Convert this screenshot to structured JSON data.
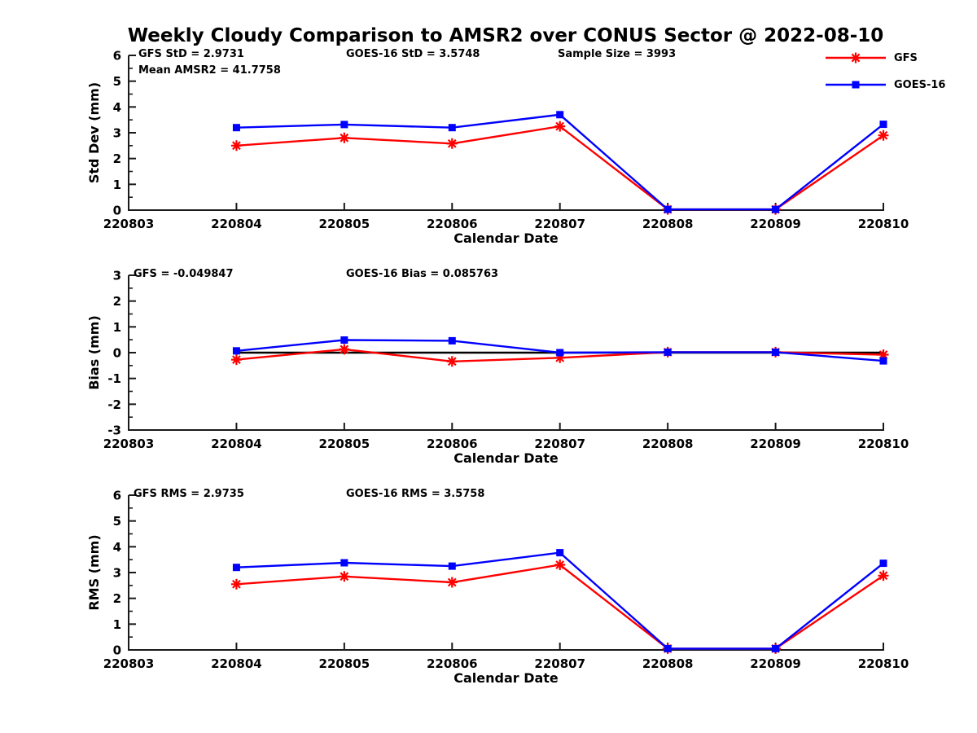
{
  "title": "Weekly Cloudy Comparison to AMSR2 over CONUS Sector @ 2022-08-10",
  "colors": {
    "gfs": "#ff0000",
    "goes16": "#0000ff",
    "axis": "#1a1a1a",
    "zero_line": "#000000",
    "background": "#ffffff"
  },
  "legend": {
    "items": [
      {
        "label": "GFS",
        "color": "#ff0000",
        "marker": "asterisk"
      },
      {
        "label": "GOES-16",
        "color": "#0000ff",
        "marker": "square"
      }
    ]
  },
  "stats": {
    "gfs_std": "2.9731",
    "goes16_std": "3.5748",
    "sample_size": "3993",
    "mean_amsr2": "41.7758",
    "gfs_bias": "-0.049847",
    "goes16_bias": "0.085763",
    "gfs_rms": "2.9735",
    "goes16_rms": "3.5758"
  },
  "chart_data": [
    {
      "id": "std-dev",
      "type": "line",
      "ylabel": "Std Dev (mm)",
      "xlabel": "Calendar Date",
      "ylim": [
        0,
        6
      ],
      "ytick_step": 1,
      "minor_tick_step": 0.5,
      "grid": false,
      "zero_line": false,
      "xticklabels": [
        "220803",
        "220804",
        "220805",
        "220806",
        "220807",
        "220808",
        "220809",
        "220810"
      ],
      "categories": [
        "220804",
        "220805",
        "220806",
        "220807",
        "220808",
        "220809",
        "220810"
      ],
      "series": [
        {
          "name": "GFS",
          "color": "#ff0000",
          "marker": "asterisk",
          "values": [
            2.5,
            2.8,
            2.58,
            3.25,
            0.03,
            0.03,
            2.9
          ]
        },
        {
          "name": "GOES-16",
          "color": "#0000ff",
          "marker": "square",
          "values": [
            3.2,
            3.32,
            3.2,
            3.7,
            0.03,
            0.03,
            3.33
          ]
        }
      ],
      "annotations": [
        {
          "text": "GFS StD = 2.9731",
          "dx": 12,
          "row": 0
        },
        {
          "text": "Mean AMSR2 = 41.7758",
          "dx": 12,
          "row": 1
        },
        {
          "text": "GOES-16 StD = 3.5748",
          "dx": 267,
          "row": 0
        },
        {
          "text": "Sample Size = 3993",
          "dx": 527,
          "row": 0
        }
      ]
    },
    {
      "id": "bias",
      "type": "line",
      "ylabel": "Bias (mm)",
      "xlabel": "Calendar Date",
      "ylim": [
        -3,
        3
      ],
      "ytick_step": 1,
      "minor_tick_step": 0.5,
      "grid": false,
      "zero_line": true,
      "xticklabels": [
        "220803",
        "220804",
        "220805",
        "220806",
        "220807",
        "220808",
        "220809",
        "220810"
      ],
      "categories": [
        "220804",
        "220805",
        "220806",
        "220807",
        "220808",
        "220809",
        "220810"
      ],
      "series": [
        {
          "name": "GFS",
          "color": "#ff0000",
          "marker": "asterisk",
          "values": [
            -0.27,
            0.13,
            -0.34,
            -0.2,
            0.02,
            0.02,
            -0.08
          ]
        },
        {
          "name": "GOES-16",
          "color": "#0000ff",
          "marker": "square",
          "values": [
            0.07,
            0.49,
            0.46,
            0.0,
            0.02,
            0.02,
            -0.32
          ]
        }
      ],
      "annotations": [
        {
          "text": "GFS = -0.049847",
          "dx": 6,
          "row": 0
        },
        {
          "text": "GOES-16 Bias  = 0.085763",
          "dx": 267,
          "row": 0
        }
      ]
    },
    {
      "id": "rms",
      "type": "line",
      "ylabel": "RMS (mm)",
      "xlabel": "Calendar Date",
      "ylim": [
        0,
        6
      ],
      "ytick_step": 1,
      "minor_tick_step": 0.5,
      "grid": false,
      "zero_line": false,
      "xticklabels": [
        "220803",
        "220804",
        "220805",
        "220806",
        "220807",
        "220808",
        "220809",
        "220810"
      ],
      "categories": [
        "220804",
        "220805",
        "220806",
        "220807",
        "220808",
        "220809",
        "220810"
      ],
      "series": [
        {
          "name": "GFS",
          "color": "#ff0000",
          "marker": "asterisk",
          "values": [
            2.55,
            2.85,
            2.62,
            3.3,
            0.05,
            0.05,
            2.88
          ]
        },
        {
          "name": "GOES-16",
          "color": "#0000ff",
          "marker": "square",
          "values": [
            3.2,
            3.38,
            3.25,
            3.77,
            0.05,
            0.05,
            3.36
          ]
        }
      ],
      "annotations": [
        {
          "text": "GFS RMS = 2.9735",
          "dx": 6,
          "row": 0
        },
        {
          "text": "GOES-16 RMS = 3.5758",
          "dx": 267,
          "row": 0
        }
      ]
    }
  ]
}
